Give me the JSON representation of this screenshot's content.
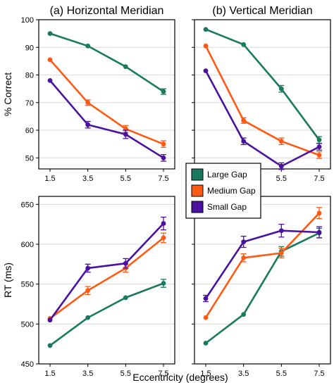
{
  "chart_data": [
    {
      "type": "line",
      "title": "(a) Horizontal Meridian",
      "ylabel": "% Correct",
      "xlabel": "",
      "x": [
        1.5,
        3.5,
        5.5,
        7.5
      ],
      "xticks": [
        "1.5",
        "3.5",
        "5.5",
        "7.5"
      ],
      "ylim": [
        46,
        100
      ],
      "yticks": [
        50,
        60,
        70,
        80,
        90,
        100
      ],
      "grid": true,
      "series": [
        {
          "name": "Large Gap",
          "values": [
            95,
            90.5,
            83,
            74
          ],
          "errors": [
            0,
            0,
            0,
            1
          ]
        },
        {
          "name": "Medium Gap",
          "values": [
            85.5,
            70,
            60.5,
            55
          ],
          "errors": [
            0,
            1,
            1.2,
            1.2
          ]
        },
        {
          "name": "Small Gap",
          "values": [
            78,
            62,
            58.5,
            50
          ],
          "errors": [
            0,
            1.2,
            1.5,
            1.2
          ]
        }
      ]
    },
    {
      "type": "line",
      "title": "(b) Vertical Meridian",
      "ylabel": "",
      "xlabel": "",
      "x": [
        1.5,
        3.5,
        5.5,
        7.5
      ],
      "xticks": [
        "1.5",
        "3.5",
        "5.5",
        "7.5"
      ],
      "ylim": [
        46,
        100
      ],
      "yticks": [
        50,
        60,
        70,
        80,
        90,
        100
      ],
      "grid": true,
      "series": [
        {
          "name": "Large Gap",
          "values": [
            96.5,
            91,
            75,
            56.5
          ],
          "errors": [
            0,
            0,
            1.2,
            1.2
          ]
        },
        {
          "name": "Medium Gap",
          "values": [
            90.5,
            63.5,
            56,
            51
          ],
          "errors": [
            0,
            1,
            1.2,
            1.2
          ]
        },
        {
          "name": "Small Gap",
          "values": [
            81.5,
            56,
            47,
            54
          ],
          "errors": [
            0,
            1.2,
            1.2,
            1.2
          ]
        }
      ]
    },
    {
      "type": "line",
      "title": "",
      "ylabel": "RT (ms)",
      "xlabel": "",
      "x": [
        1.5,
        3.5,
        5.5,
        7.5
      ],
      "xticks": [
        "1.5",
        "3.5",
        "5.5",
        "7.5"
      ],
      "ylim": [
        450,
        660
      ],
      "yticks": [
        450,
        500,
        550,
        600,
        650
      ],
      "grid": true,
      "series": [
        {
          "name": "Large Gap",
          "values": [
            473,
            508,
            533,
            551
          ],
          "errors": [
            0,
            0,
            0,
            5
          ]
        },
        {
          "name": "Medium Gap",
          "values": [
            507,
            542,
            570,
            608
          ],
          "errors": [
            0,
            5,
            5,
            6
          ]
        },
        {
          "name": "Small Gap",
          "values": [
            505,
            570,
            576,
            626
          ],
          "errors": [
            0,
            5,
            6,
            8
          ]
        }
      ]
    },
    {
      "type": "line",
      "title": "",
      "ylabel": "",
      "xlabel": "",
      "x": [
        1.5,
        3.5,
        5.5,
        7.5
      ],
      "xticks": [
        "1.5",
        "3.5",
        "5.5",
        "7.5"
      ],
      "ylim": [
        450,
        660
      ],
      "yticks": [
        450,
        500,
        550,
        600,
        650
      ],
      "grid": true,
      "series": [
        {
          "name": "Large Gap",
          "values": [
            476,
            512,
            591,
            614
          ],
          "errors": [
            0,
            0,
            6,
            6
          ]
        },
        {
          "name": "Medium Gap",
          "values": [
            508,
            583,
            589,
            639
          ],
          "errors": [
            0,
            5,
            6,
            7
          ]
        },
        {
          "name": "Small Gap",
          "values": [
            532,
            603,
            617,
            615
          ],
          "errors": [
            4,
            7,
            8,
            7
          ]
        }
      ]
    }
  ],
  "shared_xlabel": "Eccentricity (degrees)",
  "legend": {
    "placement": "center",
    "entries": [
      "Large Gap",
      "Medium Gap",
      "Small Gap"
    ]
  },
  "colors": {
    "Large Gap": "#1a7a5e",
    "Medium Gap": "#ff5a14",
    "Small Gap": "#4b12a0"
  }
}
